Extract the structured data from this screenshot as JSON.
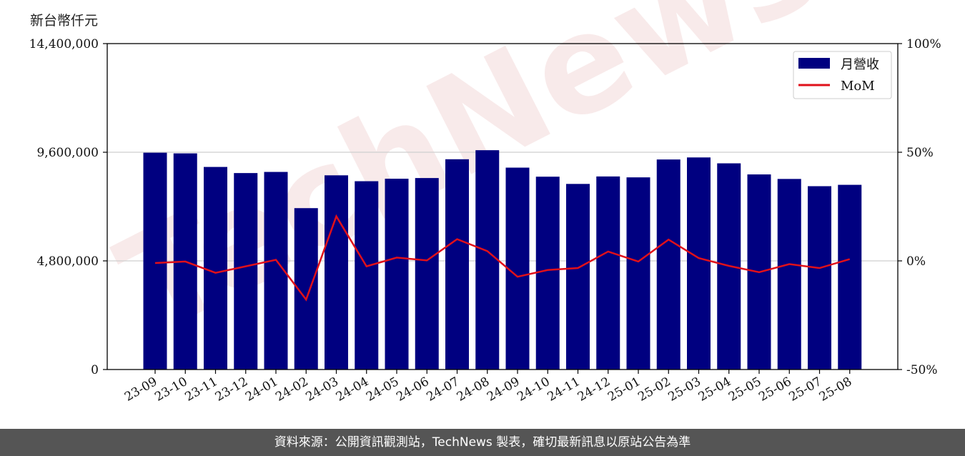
{
  "unit_label": "新台幣仟元",
  "footer_text": "資料來源：公開資訊觀測站，TechNews 製表，確切最新訊息以原站公告為準",
  "watermark_text": "TechNews",
  "colors": {
    "bar": "#000080",
    "line": "#e0101a",
    "grid": "#cfcfcf",
    "footer_bg": "#555555",
    "watermark": "#f3d9d9"
  },
  "chart_data": {
    "type": "bar",
    "categories": [
      "23-09",
      "23-10",
      "23-11",
      "23-12",
      "24-01",
      "24-02",
      "24-03",
      "24-04",
      "24-05",
      "24-06",
      "24-07",
      "24-08",
      "24-09",
      "24-10",
      "24-11",
      "24-12",
      "25-01",
      "25-02",
      "25-03",
      "25-04",
      "25-05",
      "25-06",
      "25-07",
      "25-08"
    ],
    "series": [
      {
        "name": "月營收",
        "type": "bar",
        "axis": "left",
        "values": [
          9580000,
          9550000,
          8950000,
          8680000,
          8730000,
          7130000,
          8580000,
          8320000,
          8430000,
          8460000,
          9290000,
          9690000,
          8920000,
          8520000,
          8200000,
          8530000,
          8490000,
          9280000,
          9370000,
          9110000,
          8620000,
          8420000,
          8100000,
          8160000
        ]
      },
      {
        "name": "MoM",
        "type": "line",
        "axis": "right",
        "values": [
          -1.0,
          -0.3,
          -5.5,
          -2.5,
          0.5,
          -17.8,
          20.5,
          -2.5,
          1.5,
          0.2,
          10.0,
          4.5,
          -7.3,
          -4.2,
          -3.3,
          4.3,
          -0.3,
          9.8,
          1.3,
          -2.3,
          -5.2,
          -1.5,
          -3.3,
          0.8
        ]
      }
    ],
    "yleft": {
      "lim": [
        0,
        14400000
      ],
      "ticks": [
        0,
        4800000,
        9600000,
        14400000
      ],
      "tick_labels": [
        "0",
        "4,800,000",
        "9,600,000",
        "14,400,000"
      ]
    },
    "yright": {
      "lim": [
        -50,
        100
      ],
      "ticks": [
        -50,
        0,
        50,
        100
      ],
      "tick_labels": [
        "-50%",
        "0%",
        "50%",
        "100%"
      ]
    },
    "grid": "horizontal",
    "legend": "top-right"
  }
}
